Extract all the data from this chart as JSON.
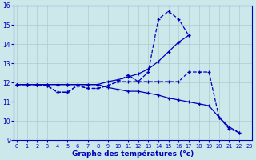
{
  "xlabel": "Graphe des températures (°c)",
  "background_color": "#cce8ea",
  "grid_color": "#aacccc",
  "line_color": "#0000bb",
  "xlim": [
    -0.3,
    23.3
  ],
  "ylim": [
    9,
    16
  ],
  "yticks": [
    9,
    10,
    11,
    12,
    13,
    14,
    15,
    16
  ],
  "xticks": [
    0,
    1,
    2,
    3,
    4,
    5,
    6,
    7,
    8,
    9,
    10,
    11,
    12,
    13,
    14,
    15,
    16,
    17,
    18,
    19,
    20,
    21,
    22,
    23
  ],
  "series1_x": [
    0,
    1,
    2,
    3,
    4,
    5,
    6,
    7,
    8,
    9,
    10,
    11,
    12,
    13,
    14,
    15,
    16,
    17
  ],
  "series1_y": [
    11.9,
    11.9,
    11.9,
    11.85,
    11.5,
    11.5,
    11.85,
    11.7,
    11.7,
    11.85,
    12.05,
    12.4,
    12.05,
    12.55,
    15.3,
    15.7,
    15.3,
    14.45
  ],
  "series1_dash": true,
  "series2_x": [
    0,
    1,
    2,
    3,
    4,
    5,
    6,
    7,
    8,
    9,
    10,
    11,
    12,
    13,
    14,
    15,
    16,
    17,
    18,
    19,
    20,
    21,
    22
  ],
  "series2_y": [
    11.9,
    11.9,
    11.9,
    11.85,
    11.5,
    11.5,
    11.85,
    11.7,
    11.7,
    11.85,
    12.05,
    12.05,
    12.05,
    12.05,
    12.05,
    12.05,
    12.05,
    12.55,
    12.55,
    12.55,
    10.2,
    9.6,
    9.4
  ],
  "series2_dash": true,
  "series3_x": [
    0,
    1,
    2,
    3,
    4,
    5,
    6,
    7,
    8,
    9,
    10,
    11,
    12,
    13,
    14,
    15,
    16,
    17
  ],
  "series3_y": [
    11.9,
    11.9,
    11.9,
    11.9,
    11.9,
    11.9,
    11.9,
    11.9,
    11.9,
    12.05,
    12.15,
    12.3,
    12.45,
    12.7,
    13.1,
    13.6,
    14.1,
    14.45
  ],
  "series3_dash": false,
  "series4_x": [
    0,
    1,
    2,
    3,
    4,
    5,
    6,
    7,
    8,
    9,
    10,
    11,
    12,
    13,
    14,
    15,
    16,
    17,
    18,
    19,
    20,
    21,
    22
  ],
  "series4_y": [
    11.9,
    11.9,
    11.9,
    11.9,
    11.9,
    11.9,
    11.9,
    11.9,
    11.9,
    11.75,
    11.65,
    11.55,
    11.55,
    11.45,
    11.35,
    11.2,
    11.1,
    11.0,
    10.9,
    10.8,
    10.2,
    9.7,
    9.4
  ],
  "series4_dash": false
}
